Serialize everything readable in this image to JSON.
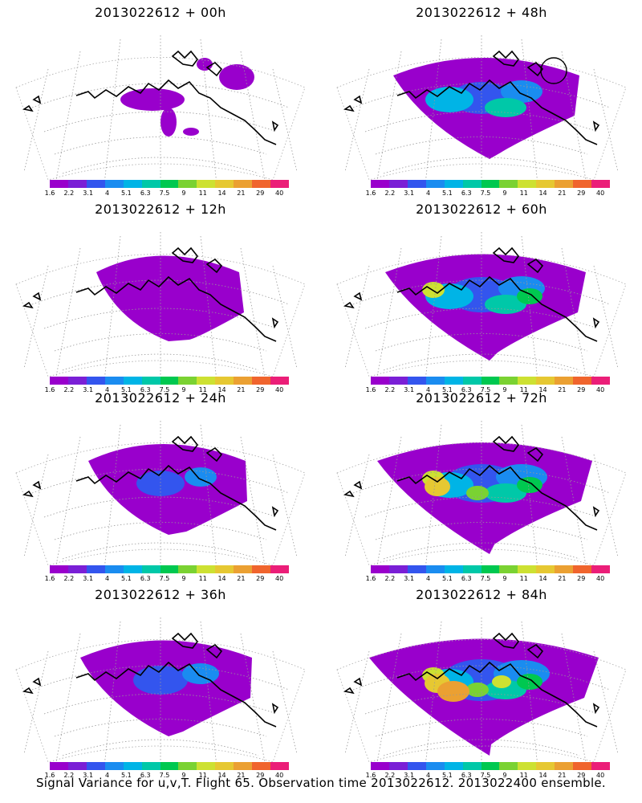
{
  "panels": [
    {
      "title": "2013022612 + 00h",
      "level": 0
    },
    {
      "title": "2013022612 + 48h",
      "level": 4
    },
    {
      "title": "2013022612 + 12h",
      "level": 1
    },
    {
      "title": "2013022612 + 60h",
      "level": 5
    },
    {
      "title": "2013022612 + 24h",
      "level": 2
    },
    {
      "title": "2013022612 + 72h",
      "level": 6
    },
    {
      "title": "2013022612 + 36h",
      "level": 3
    },
    {
      "title": "2013022612 + 84h",
      "level": 7
    }
  ],
  "colorbar": {
    "labels": [
      "1.6",
      "2.2",
      "3.1",
      "4",
      "5.1",
      "6.3",
      "7.5",
      "9",
      "11",
      "14",
      "21",
      "29",
      "40"
    ],
    "colors": [
      "#9900cc",
      "#7a1fd6",
      "#3355ee",
      "#1a8cf0",
      "#00b4e6",
      "#00c8a8",
      "#00c850",
      "#7ad232",
      "#cde132",
      "#e6c832",
      "#eba032",
      "#f0642d",
      "#eb1e78"
    ]
  },
  "footer": "Signal Variance for u,v,T. Flight 65. Observation time 2013022612. 2013022400 ensemble."
}
